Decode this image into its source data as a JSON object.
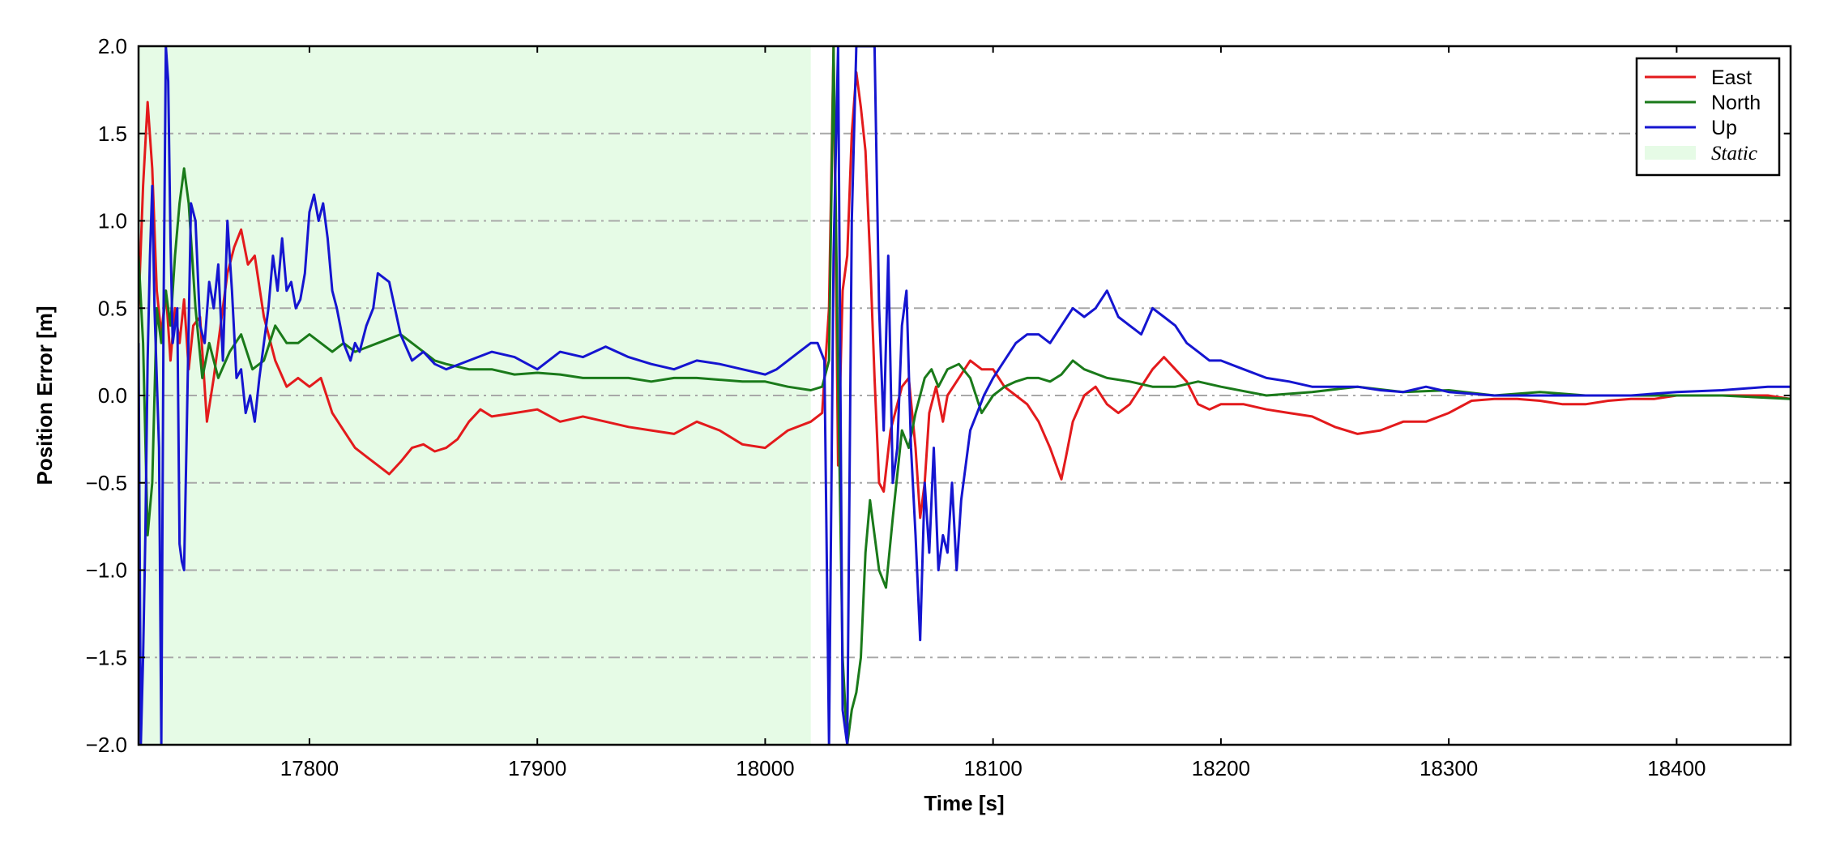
{
  "chart_data": {
    "type": "line",
    "xlabel": "Time [s]",
    "ylabel": "Position Error [m]",
    "xlim": [
      17725,
      18450
    ],
    "ylim": [
      -2.0,
      2.0
    ],
    "xticks": [
      17800,
      17900,
      18000,
      18100,
      18200,
      18300,
      18400
    ],
    "yticks": [
      -2.0,
      -1.5,
      -1.0,
      -0.5,
      0.0,
      0.5,
      1.0,
      1.5,
      2.0
    ],
    "xtick_labels": [
      "17800",
      "17900",
      "18000",
      "18100",
      "18200",
      "18300",
      "18400"
    ],
    "ytick_labels": [
      "−2.0",
      "−1.5",
      "−1.0",
      "−0.5",
      "0.0",
      "0.5",
      "1.0",
      "1.5",
      "2.0"
    ],
    "grid": "horizontal dash-dot",
    "legend_position": "top-right",
    "static_region": {
      "label": "Static",
      "x": [
        17725,
        18020
      ],
      "color": "#e6fbe6"
    },
    "series": [
      {
        "name": "East",
        "color": "#e31a1c",
        "x": [
          17725,
          17727,
          17729,
          17731,
          17733,
          17735,
          17737,
          17739,
          17741,
          17743,
          17745,
          17747,
          17749,
          17752,
          17755,
          17758,
          17761,
          17764,
          17767,
          17770,
          17773,
          17776,
          17780,
          17785,
          17790,
          17795,
          17800,
          17805,
          17810,
          17815,
          17820,
          17825,
          17830,
          17835,
          17840,
          17845,
          17850,
          17855,
          17860,
          17865,
          17870,
          17875,
          17880,
          17890,
          17900,
          17910,
          17920,
          17930,
          17940,
          17950,
          17960,
          17970,
          17980,
          17990,
          18000,
          18010,
          18020,
          18025,
          18028,
          18030,
          18032,
          18034,
          18036,
          18038,
          18040,
          18042,
          18044,
          18046,
          18048,
          18050,
          18052,
          18055,
          18058,
          18060,
          18063,
          18066,
          18068,
          18070,
          18072,
          18075,
          18078,
          18080,
          18085,
          18090,
          18095,
          18100,
          18105,
          18110,
          18115,
          18120,
          18125,
          18130,
          18132,
          18135,
          18140,
          18145,
          18150,
          18155,
          18160,
          18165,
          18170,
          18175,
          18180,
          18185,
          18190,
          18195,
          18200,
          18210,
          18220,
          18230,
          18240,
          18250,
          18260,
          18270,
          18280,
          18290,
          18300,
          18310,
          18320,
          18330,
          18340,
          18350,
          18360,
          18370,
          18380,
          18390,
          18400,
          18410,
          18420,
          18430,
          18440,
          18450
        ],
        "y": [
          0.5,
          1.2,
          1.68,
          1.3,
          0.6,
          0.35,
          0.6,
          0.2,
          0.5,
          0.3,
          0.55,
          0.15,
          0.4,
          0.45,
          -0.15,
          0.1,
          0.4,
          0.7,
          0.85,
          0.95,
          0.75,
          0.8,
          0.45,
          0.2,
          0.05,
          0.1,
          0.05,
          0.1,
          -0.1,
          -0.2,
          -0.3,
          -0.35,
          -0.4,
          -0.45,
          -0.38,
          -0.3,
          -0.28,
          -0.32,
          -0.3,
          -0.25,
          -0.15,
          -0.08,
          -0.12,
          -0.1,
          -0.08,
          -0.15,
          -0.12,
          -0.15,
          -0.18,
          -0.2,
          -0.22,
          -0.15,
          -0.2,
          -0.28,
          -0.3,
          -0.2,
          -0.15,
          -0.1,
          0.5,
          2.0,
          -0.4,
          0.6,
          0.8,
          1.5,
          1.85,
          1.65,
          1.4,
          0.8,
          0.1,
          -0.5,
          -0.55,
          -0.2,
          -0.05,
          0.05,
          0.1,
          -0.3,
          -0.7,
          -0.5,
          -0.1,
          0.05,
          -0.15,
          0.0,
          0.1,
          0.2,
          0.15,
          0.15,
          0.05,
          0.0,
          -0.05,
          -0.15,
          -0.3,
          -0.48,
          -0.35,
          -0.15,
          0.0,
          0.05,
          -0.05,
          -0.1,
          -0.05,
          0.05,
          0.15,
          0.22,
          0.15,
          0.08,
          -0.05,
          -0.08,
          -0.05,
          -0.05,
          -0.08,
          -0.1,
          -0.12,
          -0.18,
          -0.22,
          -0.2,
          -0.15,
          -0.15,
          -0.1,
          -0.03,
          -0.02,
          -0.02,
          -0.03,
          -0.05,
          -0.05,
          -0.03,
          -0.02,
          -0.02,
          0.0,
          0.0,
          0.0,
          0.0,
          0.0,
          -0.02
        ]
      },
      {
        "name": "North",
        "color": "#1a7a1a",
        "x": [
          17725,
          17727,
          17729,
          17731,
          17733,
          17735,
          17737,
          17739,
          17741,
          17743,
          17745,
          17747,
          17750,
          17753,
          17756,
          17760,
          17765,
          17770,
          17775,
          17780,
          17785,
          17790,
          17795,
          17800,
          17805,
          17810,
          17815,
          17820,
          17830,
          17840,
          17845,
          17850,
          17855,
          17860,
          17870,
          17880,
          17890,
          17900,
          17910,
          17920,
          17930,
          17940,
          17950,
          17960,
          17970,
          17980,
          17990,
          18000,
          18010,
          18020,
          18025,
          18028,
          18030,
          18032,
          18034,
          18036,
          18038,
          18040,
          18042,
          18044,
          18046,
          18048,
          18050,
          18053,
          18056,
          18060,
          18063,
          18066,
          18070,
          18073,
          18076,
          18080,
          18085,
          18090,
          18095,
          18100,
          18105,
          18110,
          18115,
          18120,
          18125,
          18130,
          18135,
          18140,
          18150,
          18160,
          18170,
          18180,
          18190,
          18200,
          18220,
          18240,
          18260,
          18280,
          18300,
          18320,
          18340,
          18360,
          18380,
          18400,
          18420,
          18450
        ],
        "y": [
          0.8,
          0.3,
          -0.8,
          -0.5,
          0.5,
          0.3,
          0.6,
          0.4,
          0.8,
          1.1,
          1.3,
          1.1,
          0.5,
          0.1,
          0.3,
          0.1,
          0.25,
          0.35,
          0.15,
          0.2,
          0.4,
          0.3,
          0.3,
          0.35,
          0.3,
          0.25,
          0.3,
          0.25,
          0.3,
          0.35,
          0.3,
          0.25,
          0.2,
          0.18,
          0.15,
          0.15,
          0.12,
          0.13,
          0.12,
          0.1,
          0.1,
          0.1,
          0.08,
          0.1,
          0.1,
          0.09,
          0.08,
          0.08,
          0.05,
          0.03,
          0.05,
          0.2,
          2.0,
          0.1,
          -1.5,
          -2.0,
          -1.8,
          -1.7,
          -1.5,
          -0.9,
          -0.6,
          -0.8,
          -1.0,
          -1.1,
          -0.7,
          -0.2,
          -0.3,
          -0.1,
          0.1,
          0.15,
          0.05,
          0.15,
          0.18,
          0.1,
          -0.1,
          0.0,
          0.05,
          0.08,
          0.1,
          0.1,
          0.08,
          0.12,
          0.2,
          0.15,
          0.1,
          0.08,
          0.05,
          0.05,
          0.08,
          0.05,
          0.0,
          0.02,
          0.05,
          0.02,
          0.03,
          0.0,
          0.02,
          0.0,
          0.0,
          0.0,
          0.0,
          -0.02
        ]
      },
      {
        "name": "Up",
        "color": "#1515d0",
        "x": [
          17725,
          17726,
          17727,
          17728,
          17729,
          17730,
          17731,
          17732,
          17733,
          17734,
          17735,
          17736,
          17737,
          17738,
          17739,
          17740,
          17741,
          17742,
          17743,
          17744,
          17745,
          17746,
          17748,
          17750,
          17752,
          17754,
          17756,
          17758,
          17760,
          17762,
          17764,
          17766,
          17768,
          17770,
          17772,
          17774,
          17776,
          17778,
          17780,
          17782,
          17784,
          17786,
          17788,
          17790,
          17792,
          17794,
          17796,
          17798,
          17800,
          17802,
          17804,
          17806,
          17808,
          17810,
          17812,
          17815,
          17818,
          17820,
          17822,
          17825,
          17828,
          17830,
          17835,
          17840,
          17845,
          17850,
          17855,
          17860,
          17870,
          17880,
          17890,
          17900,
          17910,
          17920,
          17930,
          17940,
          17950,
          17960,
          17970,
          17980,
          17990,
          18000,
          18005,
          18010,
          18015,
          18020,
          18023,
          18026,
          18028,
          18030,
          18032,
          18034,
          18036,
          18038,
          18040,
          18042,
          18044,
          18046,
          18048,
          18050,
          18052,
          18054,
          18056,
          18058,
          18060,
          18062,
          18064,
          18066,
          18068,
          18070,
          18072,
          18074,
          18076,
          18078,
          18080,
          18082,
          18084,
          18086,
          18088,
          18090,
          18093,
          18096,
          18100,
          18105,
          18110,
          18115,
          18120,
          18125,
          18130,
          18135,
          18140,
          18145,
          18150,
          18155,
          18160,
          18165,
          18170,
          18175,
          18180,
          18185,
          18190,
          18195,
          18200,
          18210,
          18220,
          18230,
          18240,
          18250,
          18260,
          18270,
          18280,
          18290,
          18300,
          18320,
          18340,
          18360,
          18380,
          18400,
          18420,
          18440,
          18450
        ],
        "y": [
          0.3,
          -2.0,
          -1.5,
          -0.8,
          0.2,
          0.8,
          1.2,
          0.5,
          0.1,
          -0.3,
          -2.0,
          0.5,
          2.0,
          1.8,
          0.9,
          0.3,
          0.4,
          0.5,
          -0.85,
          -0.95,
          -1.0,
          -0.3,
          1.1,
          1.0,
          0.4,
          0.3,
          0.65,
          0.5,
          0.75,
          0.2,
          1.0,
          0.6,
          0.1,
          0.15,
          -0.1,
          0.0,
          -0.15,
          0.1,
          0.3,
          0.5,
          0.8,
          0.6,
          0.9,
          0.6,
          0.65,
          0.5,
          0.55,
          0.7,
          1.05,
          1.15,
          1.0,
          1.1,
          0.9,
          0.6,
          0.5,
          0.3,
          0.2,
          0.3,
          0.25,
          0.4,
          0.5,
          0.7,
          0.65,
          0.35,
          0.2,
          0.25,
          0.18,
          0.15,
          0.2,
          0.25,
          0.22,
          0.15,
          0.25,
          0.22,
          0.28,
          0.22,
          0.18,
          0.15,
          0.2,
          0.18,
          0.15,
          0.12,
          0.15,
          0.2,
          0.25,
          0.3,
          0.3,
          0.2,
          -2.0,
          0.8,
          2.0,
          -1.8,
          -2.0,
          1.0,
          2.0,
          2.0,
          2.0,
          2.0,
          2.0,
          0.5,
          -0.2,
          0.8,
          -0.5,
          -0.3,
          0.4,
          0.6,
          -0.3,
          -0.8,
          -1.4,
          -0.5,
          -0.9,
          -0.3,
          -1.0,
          -0.8,
          -0.9,
          -0.5,
          -1.0,
          -0.6,
          -0.4,
          -0.2,
          -0.1,
          0.0,
          0.1,
          0.2,
          0.3,
          0.35,
          0.35,
          0.3,
          0.4,
          0.5,
          0.45,
          0.5,
          0.6,
          0.45,
          0.4,
          0.35,
          0.5,
          0.45,
          0.4,
          0.3,
          0.25,
          0.2,
          0.2,
          0.15,
          0.1,
          0.08,
          0.05,
          0.05,
          0.05,
          0.03,
          0.02,
          0.05,
          0.02,
          0.0,
          0.0,
          0.0,
          0.0,
          0.02,
          0.03,
          0.05,
          0.05
        ]
      }
    ]
  }
}
